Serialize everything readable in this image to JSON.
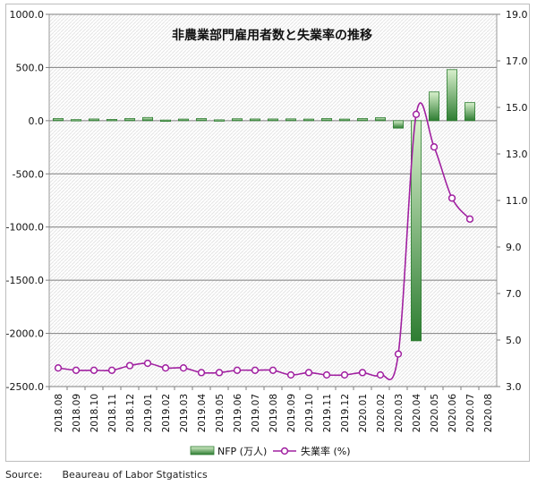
{
  "source": {
    "label": "Source:",
    "text": "Beaureau of Labor Stgatistics"
  },
  "colors": {
    "bar_fill_dark": "#2e7d32",
    "bar_fill_light": "#d8f0cc",
    "line": "#a020a0",
    "marker_fill": "#ffffff",
    "grid": "#7f7f7f",
    "plot_bg_hatch": "#e4e4e4"
  },
  "chart_data": {
    "type": "bar",
    "title": "非農業部門雇用者数と失業率の推移",
    "categories": [
      "2018.08",
      "2018.09",
      "2018.10",
      "2018.11",
      "2018.12",
      "2019.01",
      "2019.02",
      "2019.03",
      "2019.04",
      "2019.05",
      "2019.06",
      "2019.07",
      "2019.08",
      "2019.09",
      "2019.10",
      "2019.11",
      "2019.12",
      "2020.01",
      "2020.02",
      "2020.03",
      "2020.04",
      "2020.05",
      "2020.06",
      "2020.07",
      "2020.08"
    ],
    "series": [
      {
        "name": "NFP (万人)",
        "type": "bar",
        "axis": "left",
        "values": [
          20,
          10,
          16,
          12,
          20,
          30,
          6,
          15,
          20,
          8,
          18,
          16,
          16,
          17,
          15,
          20,
          15,
          20,
          28,
          -70,
          -2070,
          270,
          480,
          170,
          null
        ]
      },
      {
        "name": "失業率 (%)",
        "type": "line",
        "axis": "right",
        "values": [
          3.8,
          3.7,
          3.7,
          3.7,
          3.9,
          4.0,
          3.8,
          3.8,
          3.6,
          3.6,
          3.7,
          3.7,
          3.7,
          3.5,
          3.6,
          3.5,
          3.5,
          3.6,
          3.5,
          4.4,
          14.7,
          13.3,
          11.1,
          10.2,
          null
        ]
      }
    ],
    "y_left": {
      "min": -2500,
      "max": 1000,
      "ticks": [
        "1000.0",
        "500.0",
        "0.0",
        "-500.0",
        "-1000.0",
        "-1500.0",
        "-2000.0",
        "-2500.0"
      ]
    },
    "y_right": {
      "min": 3.0,
      "max": 19.0,
      "ticks": [
        "19.0",
        "17.0",
        "15.0",
        "13.0",
        "11.0",
        "9.0",
        "7.0",
        "5.0",
        "3.0"
      ]
    },
    "grid": true,
    "legend": {
      "placement": "bottom",
      "items": [
        "NFP (万人)",
        "失業率 (%)"
      ]
    }
  }
}
